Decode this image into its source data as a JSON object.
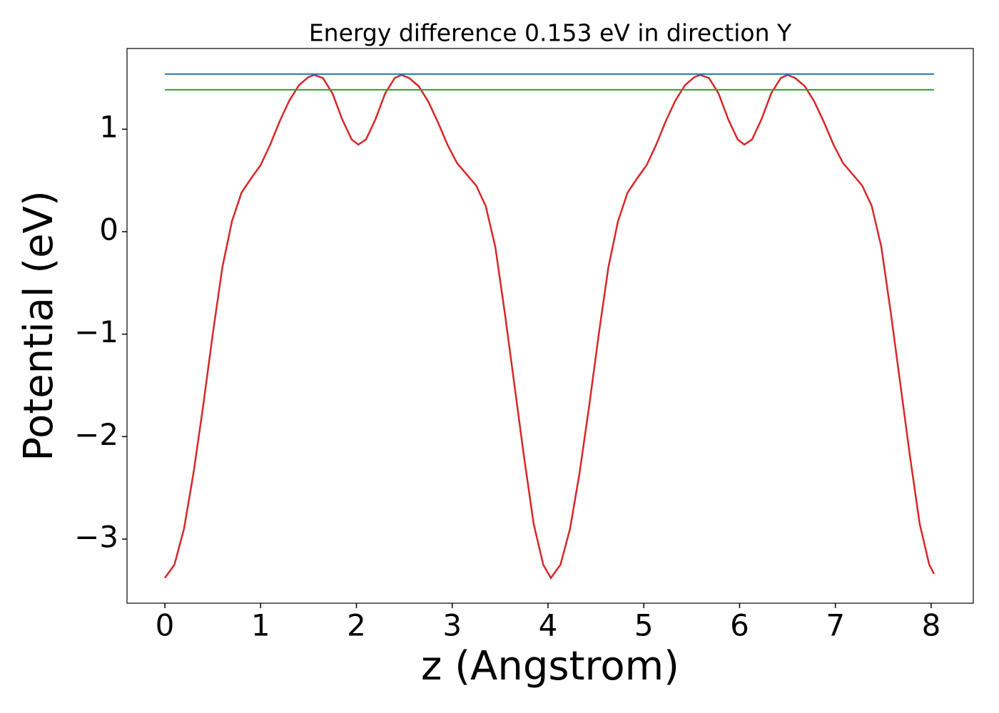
{
  "chart_data": {
    "type": "line",
    "title": "Energy difference 0.153 eV in direction Y",
    "xlabel": "z (Angstrom)",
    "ylabel": "Potential (eV)",
    "xlim": [
      -0.395,
      8.44
    ],
    "ylim": [
      -3.626,
      1.788
    ],
    "xticks": [
      0,
      1,
      2,
      3,
      4,
      5,
      6,
      7,
      8
    ],
    "yticks": [
      {
        "value": -3,
        "label": "−3"
      },
      {
        "value": -2,
        "label": "−2"
      },
      {
        "value": -1,
        "label": "−1"
      },
      0,
      1
    ],
    "series": [
      {
        "color": "#d62728",
        "x": [
          0,
          0.1,
          0.2,
          0.3,
          0.4,
          0.5,
          0.6,
          0.7,
          0.8,
          0.9,
          1.0,
          1.1,
          1.2,
          1.3,
          1.4,
          1.5,
          1.56,
          1.65,
          1.75,
          1.85,
          1.95,
          2.02,
          2.1,
          2.2,
          2.3,
          2.4,
          2.47,
          2.55,
          2.65,
          2.75,
          2.85,
          2.95,
          3.05,
          3.15,
          3.25,
          3.35,
          3.45,
          3.55,
          3.65,
          3.75,
          3.85,
          3.95,
          4.03,
          4.13,
          4.23,
          4.33,
          4.43,
          4.53,
          4.63,
          4.73,
          4.83,
          4.93,
          5.03,
          5.13,
          5.23,
          5.33,
          5.43,
          5.53,
          5.59,
          5.68,
          5.78,
          5.88,
          5.98,
          6.05,
          6.13,
          6.23,
          6.33,
          6.43,
          6.5,
          6.58,
          6.68,
          6.78,
          6.88,
          6.98,
          7.08,
          7.18,
          7.28,
          7.38,
          7.48,
          7.58,
          7.68,
          7.78,
          7.88,
          7.98,
          8.03
        ],
        "values": [
          -3.38,
          -3.25,
          -2.9,
          -2.35,
          -1.7,
          -1.0,
          -0.35,
          0.1,
          0.38,
          0.52,
          0.65,
          0.85,
          1.08,
          1.28,
          1.43,
          1.51,
          1.53,
          1.5,
          1.35,
          1.1,
          0.9,
          0.85,
          0.9,
          1.1,
          1.35,
          1.5,
          1.53,
          1.5,
          1.42,
          1.27,
          1.07,
          0.85,
          0.67,
          0.56,
          0.45,
          0.25,
          -0.15,
          -0.8,
          -1.5,
          -2.2,
          -2.85,
          -3.25,
          -3.38,
          -3.25,
          -2.9,
          -2.35,
          -1.7,
          -1.0,
          -0.35,
          0.1,
          0.38,
          0.52,
          0.65,
          0.85,
          1.08,
          1.28,
          1.43,
          1.51,
          1.53,
          1.5,
          1.35,
          1.1,
          0.9,
          0.85,
          0.9,
          1.1,
          1.35,
          1.5,
          1.53,
          1.5,
          1.42,
          1.27,
          1.07,
          0.85,
          0.67,
          0.56,
          0.45,
          0.25,
          -0.15,
          -0.8,
          -1.5,
          -2.2,
          -2.85,
          -3.25,
          -3.34
        ]
      },
      {
        "color": "#1f77b4",
        "x": [
          0,
          8.03
        ],
        "values": [
          1.538,
          1.538
        ]
      },
      {
        "color": "#2ca02c",
        "x": [
          0,
          8.03
        ],
        "values": [
          1.385,
          1.385
        ]
      }
    ]
  }
}
